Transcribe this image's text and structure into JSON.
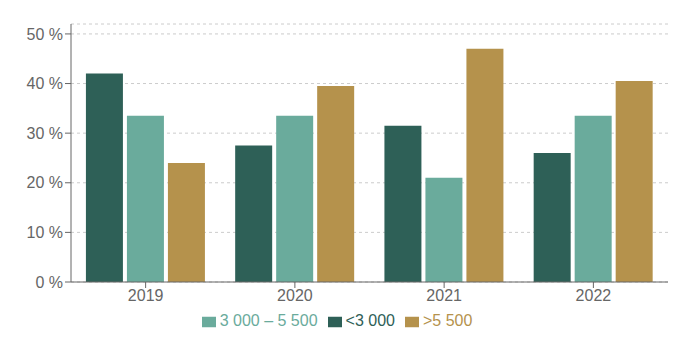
{
  "chart_data": {
    "type": "bar",
    "categories": [
      "2019",
      "2020",
      "2021",
      "2022"
    ],
    "series": [
      {
        "name": "<3 000",
        "color": "#2e6057",
        "values": [
          42.0,
          27.5,
          31.5,
          26.0
        ]
      },
      {
        "name": "3 000 – 5 500",
        "color": "#6aab9c",
        "values": [
          33.5,
          33.5,
          21.0,
          33.5
        ]
      },
      {
        "name": ">5 500",
        "color": "#b5924c",
        "values": [
          24.0,
          39.5,
          47.0,
          40.5
        ]
      }
    ],
    "ylim": [
      0,
      52
    ],
    "yticks": [
      {
        "value": 0,
        "label": "0 %"
      },
      {
        "value": 10,
        "label": "10 %"
      },
      {
        "value": 20,
        "label": "20 %"
      },
      {
        "value": 30,
        "label": "30 %"
      },
      {
        "value": 40,
        "label": "40 %"
      },
      {
        "value": 50,
        "label": "50 %"
      }
    ],
    "grid": true,
    "legend": "bottom"
  }
}
